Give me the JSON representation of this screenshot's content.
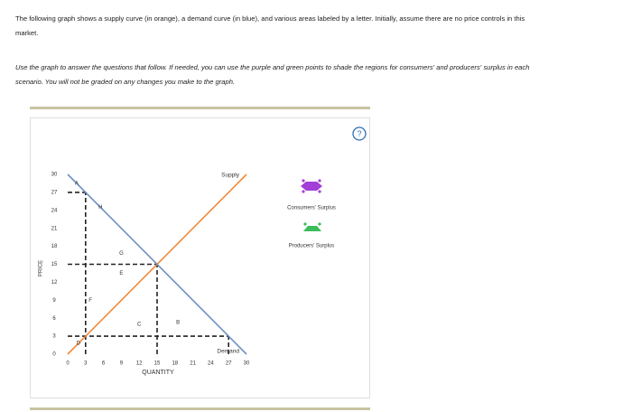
{
  "instructions": {
    "paragraph_1": "The following graph shows a supply curve (in orange), a demand curve (in blue), and various areas labeled by a letter. Initially, assume there are no price controls in this market.",
    "paragraph_2": "Use the graph to answer the questions that follow. If needed, you can use the purple and green points to shade the regions for consumers' and producers' surplus in each scenario. You will not be graded on any changes you make to the graph."
  },
  "chart_data": {
    "type": "line",
    "x_label": "QUANTITY",
    "y_label": "PRICE",
    "xlim": [
      0,
      30
    ],
    "ylim": [
      0,
      30
    ],
    "xticks": [
      0,
      3,
      6,
      9,
      12,
      15,
      18,
      21,
      24,
      27,
      30
    ],
    "yticks": [
      0,
      3,
      6,
      9,
      12,
      15,
      18,
      21,
      24,
      27,
      30
    ],
    "series": [
      {
        "name": "Supply",
        "color": "#f08a3c",
        "x": [
          0,
          30
        ],
        "values": [
          0,
          30
        ]
      },
      {
        "name": "Demand",
        "color": "#6f8fc4",
        "x": [
          0,
          30
        ],
        "values": [
          30,
          0
        ]
      }
    ],
    "dashed_segments": [
      {
        "x": [
          0,
          3
        ],
        "values": [
          27,
          27
        ]
      },
      {
        "x": [
          0,
          15
        ],
        "values": [
          15,
          15
        ]
      },
      {
        "x": [
          0,
          27
        ],
        "values": [
          3,
          3
        ]
      },
      {
        "x": [
          3,
          3
        ],
        "values": [
          0,
          27
        ]
      },
      {
        "x": [
          15,
          15
        ],
        "values": [
          0,
          15
        ]
      },
      {
        "x": [
          27,
          27
        ],
        "values": [
          0,
          3
        ]
      }
    ],
    "annotations": [
      {
        "text": "A",
        "x": 1.5,
        "y": 28.5
      },
      {
        "text": "H",
        "x": 5.5,
        "y": 24.5
      },
      {
        "text": "G",
        "x": 9,
        "y": 16.8
      },
      {
        "text": "E",
        "x": 9,
        "y": 13.5
      },
      {
        "text": "F",
        "x": 3.8,
        "y": 9
      },
      {
        "text": "C",
        "x": 12,
        "y": 5
      },
      {
        "text": "B",
        "x": 18.5,
        "y": 5.3
      },
      {
        "text": "D",
        "x": 1.8,
        "y": 1.8
      }
    ],
    "tools": [
      "Consumers' Surplus",
      "Producers' Surplus"
    ]
  }
}
